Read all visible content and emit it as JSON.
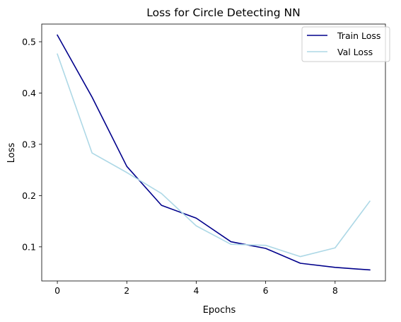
{
  "chart_data": {
    "type": "line",
    "title": "Loss for Circle Detecting NN",
    "xlabel": "Epochs",
    "ylabel": "Loss",
    "x": [
      0,
      1,
      2,
      3,
      4,
      5,
      6,
      7,
      8,
      9
    ],
    "xlim": [
      -0.45,
      9.45
    ],
    "ylim": [
      0.0335,
      0.5345
    ],
    "xticks": [
      0,
      2,
      4,
      6,
      8
    ],
    "yticks": [
      0.1,
      0.2,
      0.3,
      0.4,
      0.5
    ],
    "grid": false,
    "legend_position": "top-right",
    "series": [
      {
        "name": "Train Loss",
        "color": "#00008b",
        "values": [
          0.513,
          0.392,
          0.257,
          0.181,
          0.156,
          0.11,
          0.097,
          0.068,
          0.06,
          0.055
        ]
      },
      {
        "name": "Val Loss",
        "color": "#add8e6",
        "values": [
          0.476,
          0.283,
          0.245,
          0.204,
          0.141,
          0.105,
          0.103,
          0.081,
          0.098,
          0.189
        ]
      }
    ]
  }
}
